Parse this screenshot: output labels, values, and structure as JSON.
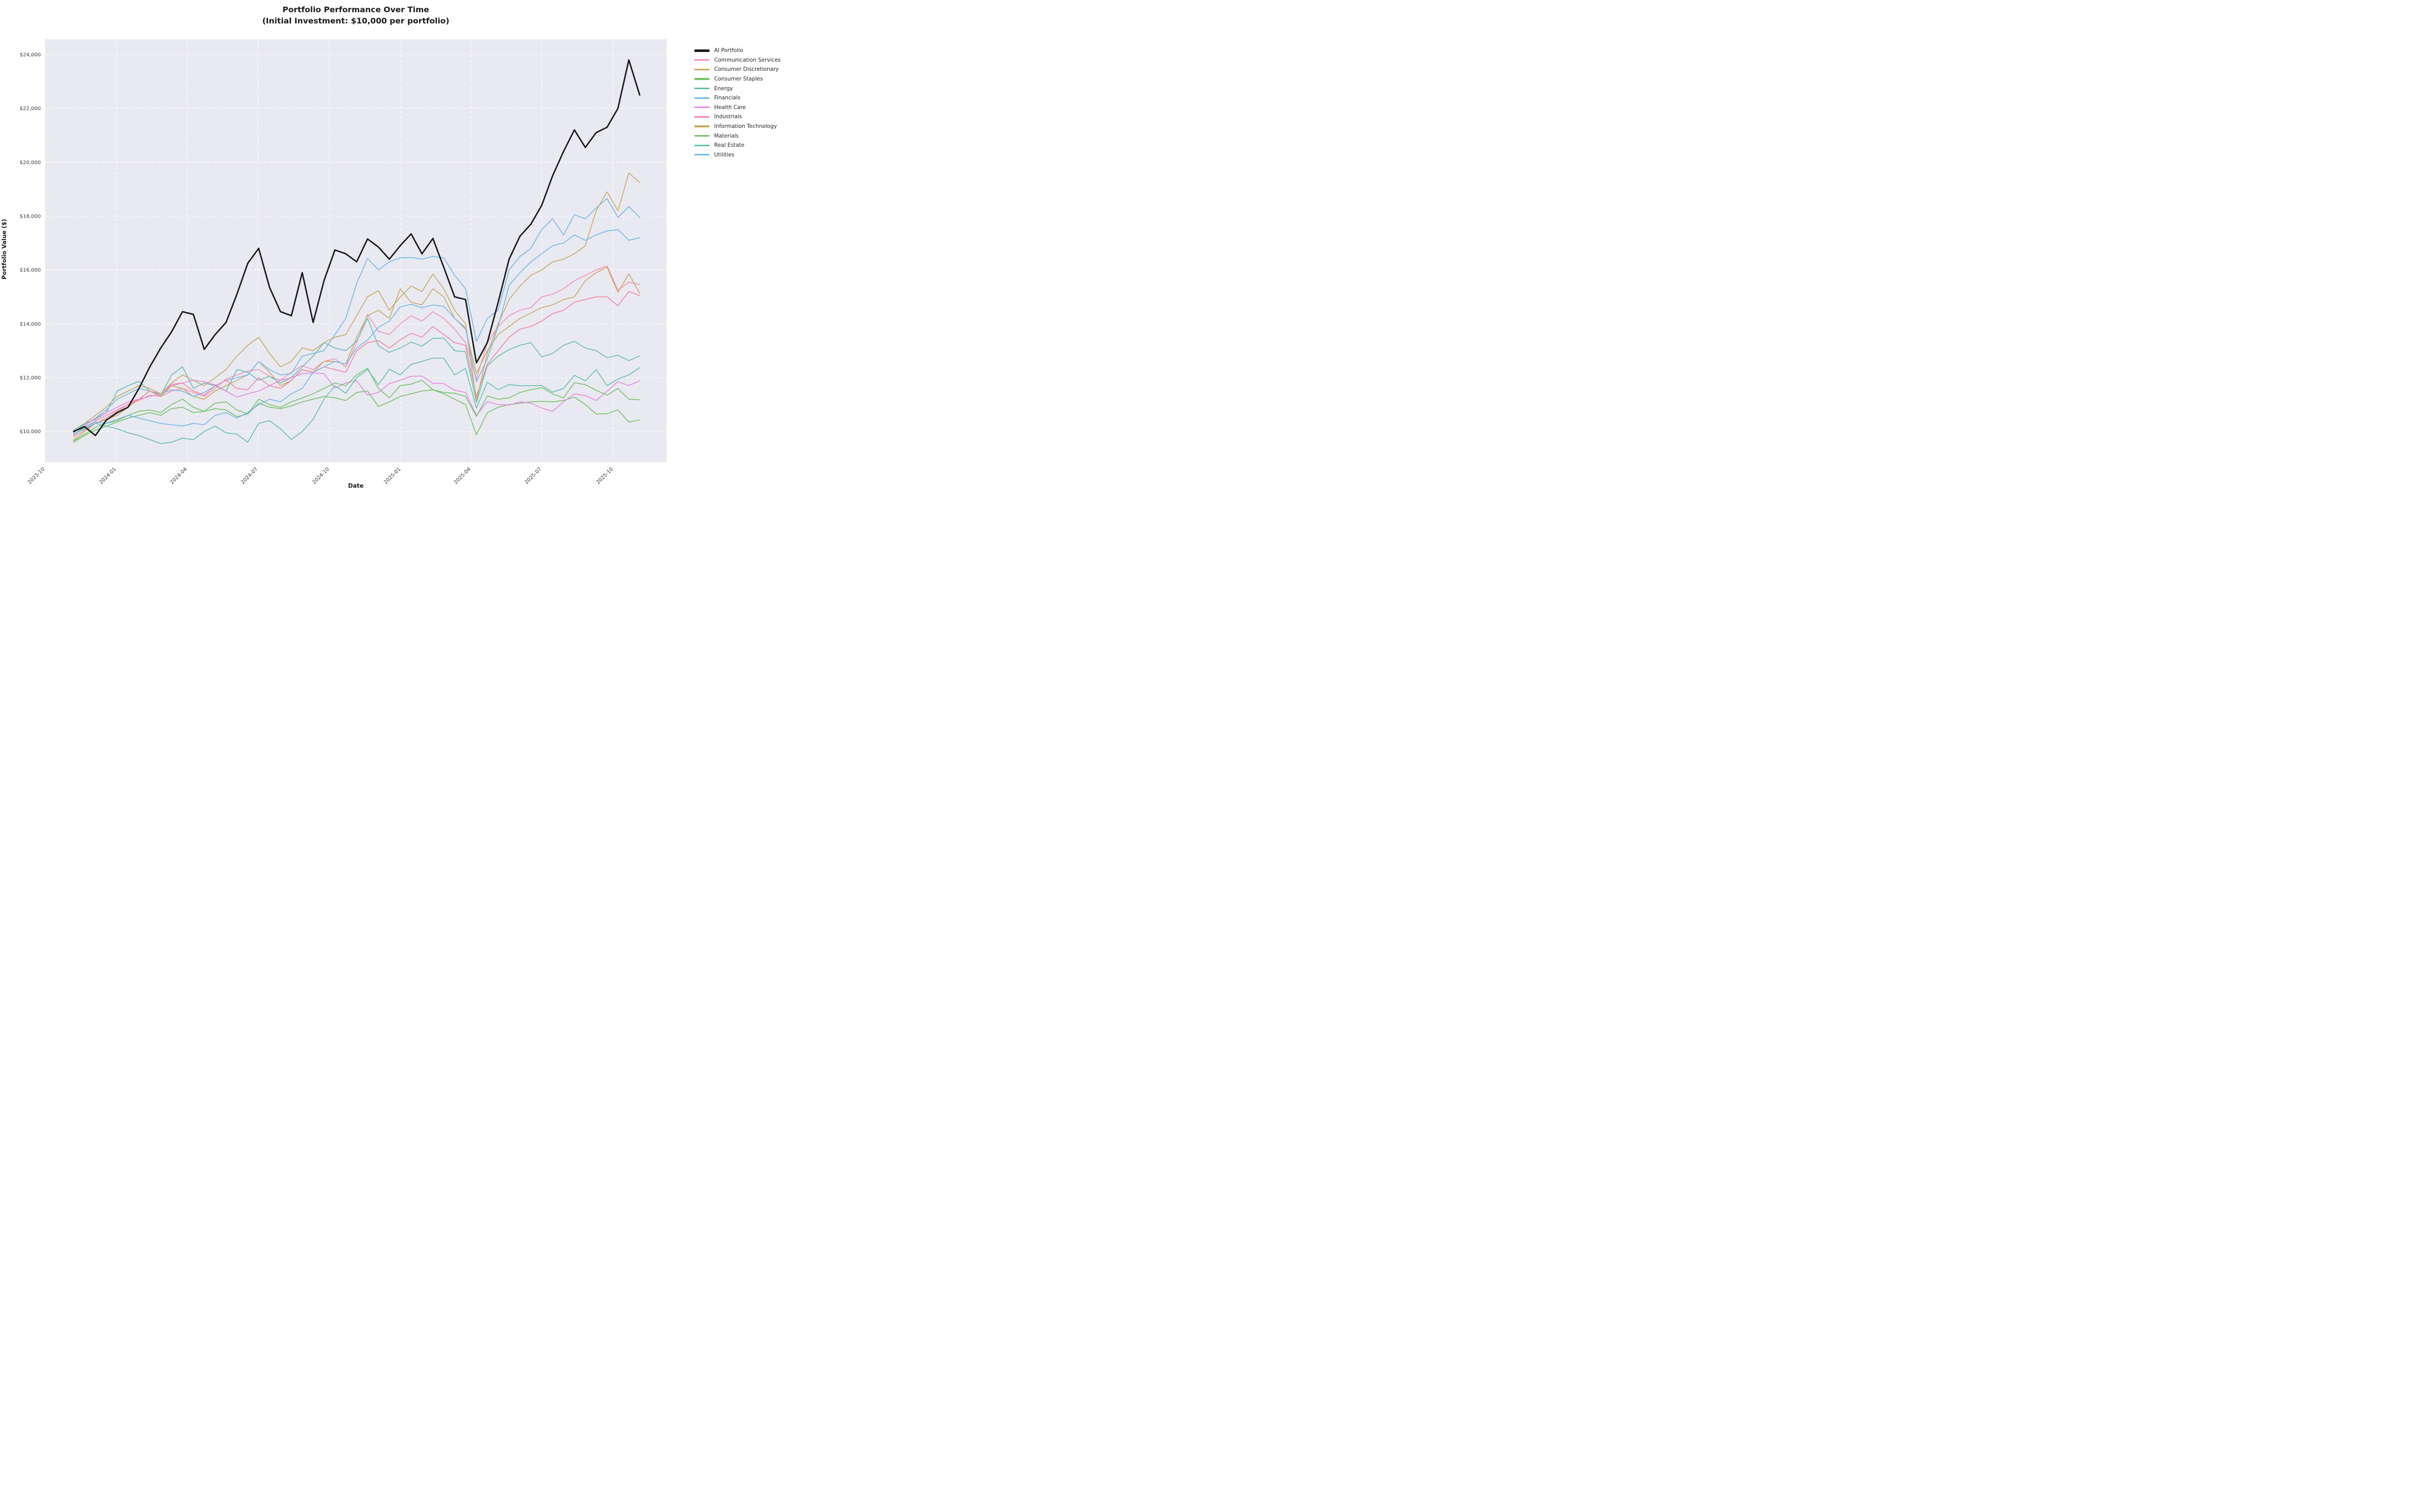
{
  "title": {
    "line1": "Portfolio Performance Over Time",
    "line2": "(Initial Investment: $10,000 per portfolio)"
  },
  "axes": {
    "x_label": "Date",
    "y_label": "Portfolio Value ($)",
    "y_ticks": [
      {
        "value": 10000,
        "label": "$10,000"
      },
      {
        "value": 12000,
        "label": "$12,000"
      },
      {
        "value": 14000,
        "label": "$14,000"
      },
      {
        "value": 16000,
        "label": "$16,000"
      },
      {
        "value": 18000,
        "label": "$18,000"
      },
      {
        "value": 20000,
        "label": "$20,000"
      },
      {
        "value": 22000,
        "label": "$22,000"
      },
      {
        "value": 24000,
        "label": "$24,000"
      }
    ],
    "x_ticks": [
      {
        "date": "2023-10-01",
        "label": "2023-10"
      },
      {
        "date": "2024-01-01",
        "label": "2024-01"
      },
      {
        "date": "2024-04-01",
        "label": "2024-04"
      },
      {
        "date": "2024-07-01",
        "label": "2024-07"
      },
      {
        "date": "2024-10-01",
        "label": "2024-10"
      },
      {
        "date": "2025-01-01",
        "label": "2025-01"
      },
      {
        "date": "2025-04-01",
        "label": "2025-04"
      },
      {
        "date": "2025-07-01",
        "label": "2025-07"
      },
      {
        "date": "2025-10-01",
        "label": "2025-10"
      }
    ]
  },
  "style": {
    "plot_background": "#e9e9f1",
    "grid_color": "#ffffff",
    "tick_color": "#3a3a3a"
  },
  "chart_data": {
    "type": "line",
    "title": "Portfolio Performance Over Time (Initial Investment: $10,000 per portfolio)",
    "xlabel": "Date",
    "ylabel": "Portfolio Value ($)",
    "ylim": [
      8860,
      24570
    ],
    "xlim": [
      "2023-10-01",
      "2025-12-08"
    ],
    "grid": true,
    "legend_position": "outside-right",
    "x": [
      "2023-11-07",
      "2023-11-21",
      "2023-12-05",
      "2023-12-19",
      "2024-01-02",
      "2024-01-16",
      "2024-01-30",
      "2024-02-13",
      "2024-02-27",
      "2024-03-12",
      "2024-03-26",
      "2024-04-09",
      "2024-04-23",
      "2024-05-07",
      "2024-05-21",
      "2024-06-04",
      "2024-06-18",
      "2024-07-02",
      "2024-07-16",
      "2024-07-30",
      "2024-08-13",
      "2024-08-27",
      "2024-09-10",
      "2024-09-24",
      "2024-10-08",
      "2024-10-22",
      "2024-11-05",
      "2024-11-19",
      "2024-12-03",
      "2024-12-17",
      "2024-12-31",
      "2025-01-14",
      "2025-01-28",
      "2025-02-11",
      "2025-02-25",
      "2025-03-11",
      "2025-03-25",
      "2025-04-08",
      "2025-04-22",
      "2025-05-06",
      "2025-05-20",
      "2025-06-03",
      "2025-06-17",
      "2025-07-01",
      "2025-07-15",
      "2025-07-29",
      "2025-08-12",
      "2025-08-26",
      "2025-09-09",
      "2025-09-23",
      "2025-10-07",
      "2025-10-21",
      "2025-11-04"
    ],
    "series": [
      {
        "name": "AI Portfolio",
        "color": "#1a1a1a",
        "line_width": 2.8,
        "values": [
          10000,
          10180,
          9850,
          10420,
          10700,
          10900,
          11600,
          12400,
          13100,
          13700,
          14450,
          14350,
          13050,
          13600,
          14050,
          15100,
          16250,
          16800,
          15350,
          14450,
          14300,
          15900,
          14050,
          15600,
          16740,
          16600,
          16300,
          17150,
          16850,
          16400,
          16900,
          17340,
          16600,
          17170,
          16100,
          15000,
          14900,
          12550,
          13300,
          14800,
          16400,
          17250,
          17700,
          18400,
          19500,
          20400,
          21200,
          20550,
          21100,
          21300,
          22000,
          23800,
          22500
        ]
      },
      {
        "name": "Communication Services",
        "color": "#f78fb2",
        "line_width": 1.6,
        "values": [
          9870,
          10150,
          10400,
          10600,
          10800,
          11000,
          11150,
          11350,
          11300,
          11500,
          11600,
          11450,
          11300,
          11600,
          11950,
          12100,
          12250,
          12300,
          12050,
          11900,
          12200,
          12450,
          12300,
          12600,
          12700,
          12400,
          13300,
          14350,
          13720,
          13600,
          14000,
          14300,
          14100,
          14450,
          14200,
          13800,
          13300,
          11950,
          13300,
          13900,
          14300,
          14500,
          14600,
          15000,
          15100,
          15300,
          15600,
          15800,
          16000,
          16150,
          15250,
          15550,
          15450
        ]
      },
      {
        "name": "Consumer Discretionary",
        "color": "#c9a95e",
        "line_width": 1.6,
        "values": [
          9680,
          10000,
          10300,
          10450,
          10600,
          10900,
          11200,
          11500,
          11300,
          11700,
          11600,
          11300,
          11200,
          11500,
          11700,
          11900,
          12100,
          12600,
          12200,
          11700,
          11900,
          12300,
          12200,
          12600,
          12600,
          12500,
          13500,
          14300,
          14500,
          14200,
          15300,
          14800,
          14700,
          15300,
          15000,
          14200,
          13800,
          12150,
          13000,
          13600,
          13900,
          14200,
          14400,
          14600,
          14700,
          14900,
          15000,
          15600,
          15900,
          16100,
          15170,
          15860,
          15130
        ]
      },
      {
        "name": "Consumer Staples",
        "color": "#74c365",
        "line_width": 1.6,
        "values": [
          9600,
          9850,
          10050,
          10200,
          10350,
          10500,
          10600,
          10700,
          10600,
          10850,
          10900,
          10700,
          10750,
          10850,
          10800,
          10550,
          10650,
          11050,
          10900,
          10850,
          10950,
          11100,
          11200,
          11300,
          11250,
          11150,
          11450,
          11500,
          10930,
          11100,
          11300,
          11400,
          11500,
          11550,
          11400,
          11200,
          11000,
          9880,
          10700,
          10900,
          11000,
          11050,
          11100,
          11120,
          11100,
          11150,
          11280,
          11000,
          10650,
          10660,
          10800,
          10350,
          10430
        ]
      },
      {
        "name": "Energy",
        "color": "#5fbfb2",
        "line_width": 1.6,
        "values": [
          10050,
          10300,
          10450,
          10700,
          11500,
          11700,
          11860,
          11500,
          11350,
          12100,
          12400,
          11600,
          11800,
          11700,
          11500,
          12300,
          12200,
          11900,
          12050,
          11800,
          12000,
          12400,
          12800,
          13300,
          13100,
          13000,
          13350,
          14200,
          13180,
          12940,
          13100,
          13320,
          13170,
          13460,
          13470,
          13000,
          12960,
          11080,
          12440,
          12800,
          13040,
          13200,
          13300,
          12770,
          12900,
          13200,
          13350,
          13100,
          13000,
          12740,
          12830,
          12630,
          12810
        ]
      },
      {
        "name": "Financials",
        "color": "#6db9ec",
        "line_width": 1.6,
        "values": [
          9950,
          10250,
          10500,
          10800,
          11200,
          11400,
          11600,
          11500,
          11400,
          11550,
          11500,
          11300,
          11450,
          11700,
          11900,
          12000,
          12100,
          12600,
          12300,
          12100,
          12150,
          12800,
          12900,
          13000,
          13600,
          14200,
          15500,
          16430,
          16000,
          16300,
          16450,
          16460,
          16400,
          16500,
          16450,
          15800,
          15300,
          13350,
          14200,
          14500,
          16000,
          16500,
          16800,
          17500,
          17900,
          17300,
          18050,
          17900,
          18300,
          18650,
          17950,
          18350,
          17950
        ]
      },
      {
        "name": "Health Care",
        "color": "#e687e3",
        "line_width": 1.6,
        "values": [
          9850,
          10200,
          10500,
          10700,
          10900,
          11100,
          11200,
          11300,
          11400,
          11750,
          11800,
          11900,
          11850,
          11730,
          11500,
          11280,
          11400,
          11500,
          11700,
          11900,
          12000,
          12150,
          12170,
          12150,
          11610,
          11800,
          11890,
          11350,
          11450,
          11780,
          11900,
          12050,
          12060,
          11790,
          11780,
          11530,
          11450,
          10600,
          11110,
          11000,
          10980,
          11100,
          11050,
          10870,
          10750,
          11100,
          11400,
          11330,
          11150,
          11500,
          11850,
          11710,
          11880
        ]
      },
      {
        "name": "Industrials",
        "color": "#f5849e",
        "line_width": 1.6,
        "values": [
          9800,
          10050,
          10300,
          10500,
          10750,
          11000,
          11200,
          11500,
          11400,
          11700,
          11800,
          11500,
          11350,
          11700,
          11900,
          11600,
          11550,
          12000,
          11700,
          11600,
          11900,
          12300,
          12200,
          12400,
          12300,
          12200,
          13000,
          13300,
          13370,
          13100,
          13400,
          13650,
          13500,
          13900,
          13600,
          13300,
          13200,
          11300,
          12500,
          13000,
          13500,
          13800,
          13900,
          14100,
          14380,
          14500,
          14800,
          14900,
          15000,
          15000,
          14670,
          15200,
          15050
        ]
      },
      {
        "name": "Information Technology",
        "color": "#c9a95e",
        "line_width": 1.6,
        "values": [
          9950,
          10300,
          10600,
          10900,
          11300,
          11500,
          11700,
          11600,
          11400,
          11800,
          12100,
          11900,
          11700,
          12000,
          12300,
          12800,
          13200,
          13500,
          12900,
          12400,
          12600,
          13100,
          13000,
          13300,
          13500,
          13600,
          14300,
          15000,
          15230,
          14500,
          15000,
          15400,
          15200,
          15850,
          15300,
          14500,
          14000,
          11150,
          12900,
          14000,
          14900,
          15400,
          15800,
          16000,
          16300,
          16400,
          16600,
          16900,
          18200,
          18900,
          18200,
          19600,
          19250
        ]
      },
      {
        "name": "Materials",
        "color": "#74c365",
        "line_width": 1.6,
        "values": [
          9650,
          9900,
          10150,
          10300,
          10400,
          10600,
          10750,
          10800,
          10700,
          11000,
          11200,
          10900,
          10750,
          11050,
          11100,
          10800,
          10650,
          11200,
          11000,
          10900,
          11100,
          11250,
          11400,
          11600,
          11800,
          11700,
          12100,
          12350,
          11600,
          11250,
          11700,
          11760,
          11900,
          11550,
          11450,
          11420,
          11300,
          10560,
          11320,
          11200,
          11250,
          11450,
          11550,
          11630,
          11400,
          11250,
          11810,
          11740,
          11530,
          11350,
          11600,
          11200,
          11180
        ]
      },
      {
        "name": "Real Estate",
        "color": "#5fbfb2",
        "line_width": 1.6,
        "values": [
          9900,
          10100,
          10300,
          10200,
          10100,
          9950,
          9850,
          9700,
          9550,
          9600,
          9750,
          9700,
          10000,
          10200,
          9950,
          9900,
          9600,
          10300,
          10400,
          10100,
          9700,
          10000,
          10450,
          11200,
          11700,
          11420,
          12000,
          12300,
          11740,
          12310,
          12100,
          12490,
          12600,
          12730,
          12720,
          12100,
          12340,
          10870,
          11830,
          11550,
          11740,
          11700,
          11700,
          11710,
          11460,
          11600,
          12090,
          11880,
          12300,
          11700,
          11950,
          12100,
          12370
        ]
      },
      {
        "name": "Utilities",
        "color": "#6db9ec",
        "line_width": 1.6,
        "values": [
          9900,
          10150,
          10350,
          10300,
          10450,
          10600,
          10500,
          10400,
          10300,
          10250,
          10200,
          10300,
          10250,
          10600,
          10700,
          10500,
          10700,
          11000,
          11200,
          11100,
          11400,
          11600,
          12200,
          12400,
          12600,
          12500,
          13100,
          13400,
          13870,
          14100,
          14630,
          14725,
          14600,
          14700,
          14650,
          14200,
          13850,
          11840,
          12700,
          13900,
          15430,
          15900,
          16300,
          16600,
          16900,
          17000,
          17300,
          17100,
          17300,
          17450,
          17500,
          17100,
          17200
        ]
      }
    ]
  }
}
